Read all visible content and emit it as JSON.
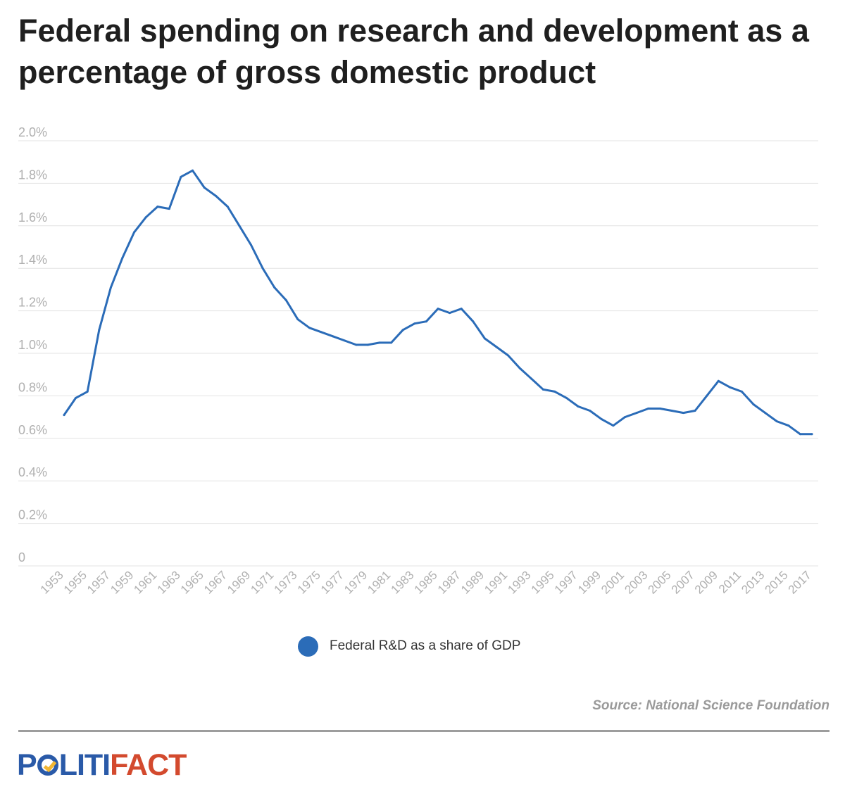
{
  "chart_data": {
    "type": "line",
    "title": "Federal spending on research and development as a percentage of gross domestic product",
    "xlabel": "",
    "ylabel": "",
    "ylim": [
      0,
      2.0
    ],
    "yticks": [
      0,
      0.2,
      0.4,
      0.6,
      0.8,
      1.0,
      1.2,
      1.4,
      1.6,
      1.8,
      2.0
    ],
    "ytick_labels": [
      "0",
      "0.2%",
      "0.4%",
      "0.6%",
      "0.8%",
      "1.0%",
      "1.2%",
      "1.4%",
      "1.6%",
      "1.8%",
      "2.0%"
    ],
    "x_tick_labels": [
      "1953",
      "1955",
      "1957",
      "1959",
      "1961",
      "1963",
      "1965",
      "1967",
      "1969",
      "1971",
      "1973",
      "1975",
      "1977",
      "1979",
      "1981",
      "1983",
      "1985",
      "1987",
      "1989",
      "1991",
      "1993",
      "1995",
      "1997",
      "1999",
      "2001",
      "2003",
      "2005",
      "2007",
      "2009",
      "2011",
      "2013",
      "2015",
      "2017"
    ],
    "grid": true,
    "legend_position": "bottom-center",
    "series": [
      {
        "name": "Federal R&D as a share of GDP",
        "color": "#2b6cb8",
        "x": [
          1953,
          1954,
          1955,
          1956,
          1957,
          1958,
          1959,
          1960,
          1961,
          1962,
          1963,
          1964,
          1965,
          1966,
          1967,
          1968,
          1969,
          1970,
          1971,
          1972,
          1973,
          1974,
          1975,
          1976,
          1977,
          1978,
          1979,
          1980,
          1981,
          1982,
          1983,
          1984,
          1985,
          1986,
          1987,
          1988,
          1989,
          1990,
          1991,
          1992,
          1993,
          1994,
          1995,
          1996,
          1997,
          1998,
          1999,
          2000,
          2001,
          2002,
          2003,
          2004,
          2005,
          2006,
          2007,
          2008,
          2009,
          2010,
          2011,
          2012,
          2013,
          2014,
          2015,
          2016,
          2017
        ],
        "values": [
          0.71,
          0.79,
          0.82,
          1.11,
          1.31,
          1.45,
          1.57,
          1.64,
          1.69,
          1.68,
          1.83,
          1.86,
          1.78,
          1.74,
          1.69,
          1.6,
          1.51,
          1.4,
          1.31,
          1.25,
          1.16,
          1.12,
          1.1,
          1.08,
          1.06,
          1.04,
          1.04,
          1.05,
          1.05,
          1.11,
          1.14,
          1.15,
          1.21,
          1.19,
          1.21,
          1.15,
          1.07,
          1.03,
          0.99,
          0.93,
          0.88,
          0.83,
          0.82,
          0.79,
          0.75,
          0.73,
          0.69,
          0.66,
          0.7,
          0.72,
          0.74,
          0.74,
          0.73,
          0.72,
          0.73,
          0.8,
          0.87,
          0.84,
          0.82,
          0.76,
          0.72,
          0.68,
          0.66,
          0.62,
          0.62
        ]
      }
    ]
  },
  "legend": {
    "label": "Federal R&D as a share of GDP",
    "color": "#2b6cb8"
  },
  "source": "Source: National Science Foundation",
  "logo": {
    "part1": "P",
    "part2": "LITI",
    "part3": "FACT",
    "color_blue": "#2a5aa8",
    "color_red": "#d34a2e"
  },
  "colors": {
    "grid": "#e3e3e3",
    "axis_text": "#b0b0b0",
    "title": "#1f1f1f"
  }
}
